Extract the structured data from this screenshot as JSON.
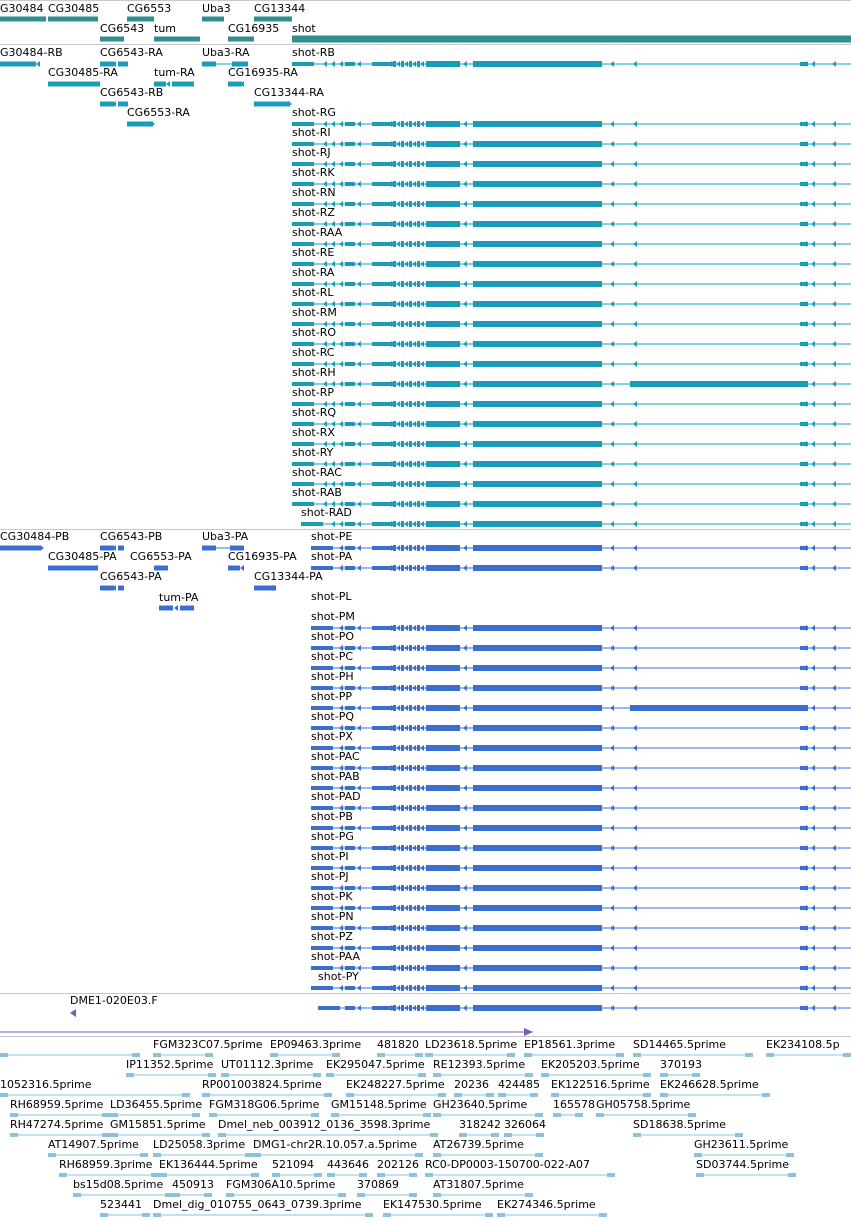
{
  "colors": {
    "gene": "#2f8f8c",
    "rna": "#1a9cb8",
    "protein": "#3a6fd0",
    "est": "#8ec0e0",
    "cdna": "#7b5cb8",
    "separator": "#c8c8c8"
  },
  "gene_track": {
    "row1_labels": [
      "G30484",
      "CG30485",
      "CG6553",
      "Uba3",
      "CG13344"
    ],
    "row2_labels": [
      "CG6543",
      "tum",
      "CG16935",
      "shot"
    ]
  },
  "rna_track": {
    "left_labels": [
      "G30484-RB",
      "CG6543-RA",
      "Uba3-RA",
      "CG30485-RA",
      "tum-RA",
      "CG16935-RA",
      "CG6543-RB",
      "CG13344-RA",
      "CG6553-RA"
    ],
    "shot_isoforms": [
      "shot-RB",
      "shot-RG",
      "shot-RI",
      "shot-RJ",
      "shot-RK",
      "shot-RN",
      "shot-RZ",
      "shot-RAA",
      "shot-RE",
      "shot-RA",
      "shot-RL",
      "shot-RM",
      "shot-RO",
      "shot-RC",
      "shot-RH",
      "shot-RP",
      "shot-RQ",
      "shot-RX",
      "shot-RY",
      "shot-RAC",
      "shot-RAB",
      "shot-RAD"
    ]
  },
  "protein_track": {
    "left_labels": [
      "CG30484-PB",
      "CG6543-PB",
      "Uba3-PA",
      "CG30485-PA",
      "CG6553-PA",
      "CG16935-PA",
      "CG6543-PA",
      "CG13344-PA",
      "tum-PA"
    ],
    "shot_isoforms": [
      "shot-PE",
      "shot-PA",
      "shot-PL",
      "shot-PM",
      "shot-PO",
      "shot-PC",
      "shot-PH",
      "shot-PP",
      "shot-PQ",
      "shot-PX",
      "shot-PAC",
      "shot-PAB",
      "shot-PAD",
      "shot-PB",
      "shot-PG",
      "shot-PI",
      "shot-PJ",
      "shot-PK",
      "shot-PN",
      "shot-PZ",
      "shot-PAA",
      "shot-PY"
    ]
  },
  "cdna_track": {
    "label": "DME1-020E03.F"
  },
  "est_track": {
    "rows": [
      [
        "FGM323C07.5prime",
        "EP09463.3prime",
        "481820",
        "LD23618.5prime",
        "EP18561.3prime",
        "SD14465.5prime",
        "EK234108.5p"
      ],
      [
        "IP11352.5prime",
        "UT01112.3prime",
        "EK295047.5prime",
        "RE12393.5prime",
        "EK205203.5prime",
        "370193"
      ],
      [
        "1052316.5prime",
        "RP001003824.5prime",
        "EK248227.5prime",
        "20236",
        "424485",
        "EK122516.5prime",
        "EK246628.5prime"
      ],
      [
        "RH68959.5prime",
        "LD36455.5prime",
        "FGM318G06.5prime",
        "GM15148.5prime",
        "GH23640.5prime",
        "165578",
        "GH05758.5prime"
      ],
      [
        "RH47274.5prime",
        "GM15851.5prime",
        "Dmel_neb_003912_0136_3598.3prime",
        "318242",
        "326064",
        "SD18638.5prime"
      ],
      [
        "AT14907.5prime",
        "LD25058.3prime",
        "DMG1-chr2R.10.057.a.5prime",
        "AT26739.5prime",
        "GH23611.5prime"
      ],
      [
        "RH68959.3prime",
        "EK136444.5prime",
        "521094",
        "443646",
        "202126",
        "RC0-DP0003-150700-022-A07",
        "SD03744.5prime"
      ],
      [
        "bs15d08.5prime",
        "450913",
        "FGM306A10.5prime",
        "370869",
        "AT31807.5prime"
      ],
      [
        "523441",
        "Dmel_dig_010755_0643_0739.3prime",
        "EK147530.5prime",
        "EK274346.5prime"
      ]
    ]
  }
}
